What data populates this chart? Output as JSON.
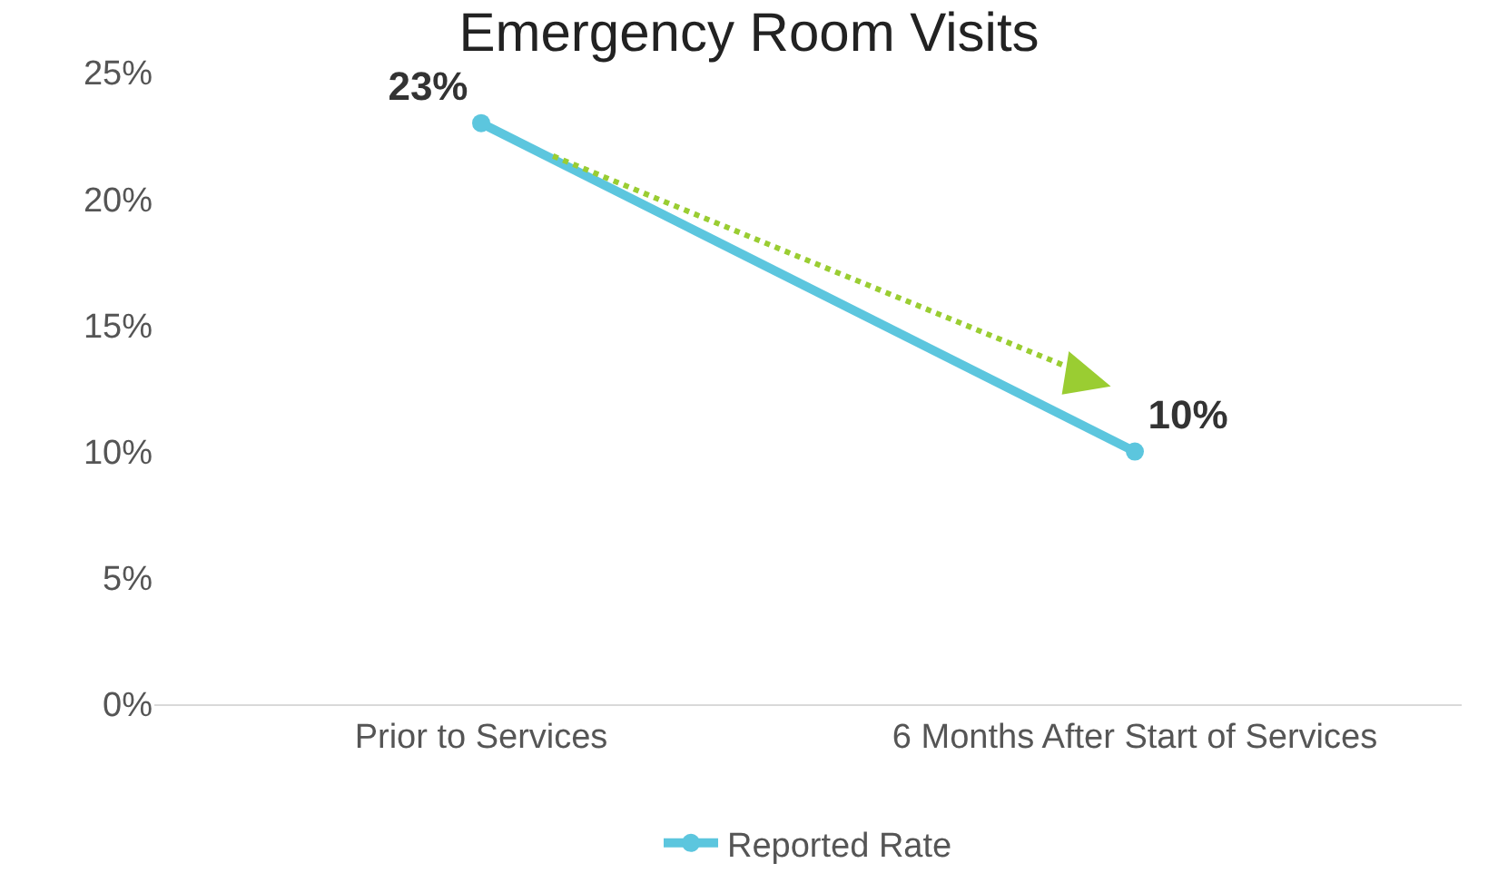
{
  "chart_data": {
    "type": "line",
    "title": "Emergency Room Visits",
    "categories": [
      "Prior to Services",
      "6 Months After Start of Services"
    ],
    "series": [
      {
        "name": "Reported Rate",
        "color": "#5cc6de",
        "values": [
          23,
          10
        ],
        "value_labels": [
          "23%",
          "10%"
        ]
      }
    ],
    "ylim": [
      0,
      25
    ],
    "yticks": [
      {
        "value": 0,
        "label": "0%"
      },
      {
        "value": 5,
        "label": "5%"
      },
      {
        "value": 10,
        "label": "10%"
      },
      {
        "value": 15,
        "label": "15%"
      },
      {
        "value": 20,
        "label": "20%"
      },
      {
        "value": 25,
        "label": "25%"
      }
    ],
    "legend": "bottom",
    "marker": "circle",
    "line_style": "solid"
  }
}
